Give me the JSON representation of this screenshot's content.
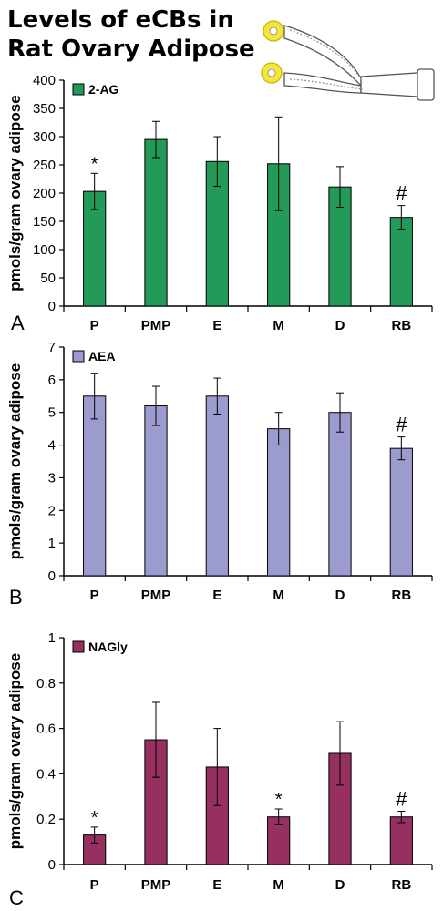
{
  "title": {
    "line1": "Levels of eCBs in",
    "line2": "Rat Ovary Adipose"
  },
  "colors": {
    "2-AG": "#249a58",
    "AEA": "#9b9bd0",
    "NAGly": "#963060",
    "axis": "#000000"
  },
  "chart_data": [
    {
      "type": "bar",
      "panel_label": "A",
      "categories": [
        "P",
        "PMP",
        "E",
        "M",
        "D",
        "RB"
      ],
      "series": [
        {
          "name": "2-AG",
          "values": [
            203,
            295,
            256,
            252,
            211,
            157
          ]
        }
      ],
      "errors_upper": [
        32,
        32,
        44,
        83,
        36,
        21
      ],
      "errors_lower": [
        32,
        32,
        44,
        83,
        36,
        21
      ],
      "annotations": [
        "*",
        "",
        "",
        "",
        "",
        "#"
      ],
      "ylabel": "pmols/gram ovary adipose",
      "ylim": [
        0,
        400
      ],
      "yticks": [
        "0",
        "50",
        "100",
        "150",
        "200",
        "250",
        "300",
        "350",
        "400"
      ],
      "legend": "top-left"
    },
    {
      "type": "bar",
      "panel_label": "B",
      "categories": [
        "P",
        "PMP",
        "E",
        "M",
        "D",
        "RB"
      ],
      "series": [
        {
          "name": "AEA",
          "values": [
            5.5,
            5.2,
            5.5,
            4.5,
            5.0,
            3.9
          ]
        }
      ],
      "errors_upper": [
        0.7,
        0.6,
        0.55,
        0.5,
        0.6,
        0.35
      ],
      "errors_lower": [
        0.7,
        0.6,
        0.55,
        0.5,
        0.6,
        0.35
      ],
      "annotations": [
        "",
        "",
        "",
        "",
        "",
        "#"
      ],
      "ylabel": "pmols/gram ovary adipose",
      "ylim": [
        0,
        7
      ],
      "yticks": [
        "0",
        "1",
        "2",
        "3",
        "4",
        "5",
        "6",
        "7"
      ],
      "legend": "top-left"
    },
    {
      "type": "bar",
      "panel_label": "C",
      "categories": [
        "P",
        "PMP",
        "E",
        "M",
        "D",
        "RB"
      ],
      "series": [
        {
          "name": "NAGly",
          "values": [
            0.13,
            0.55,
            0.43,
            0.21,
            0.49,
            0.21
          ]
        }
      ],
      "errors_upper": [
        0.035,
        0.165,
        0.17,
        0.035,
        0.14,
        0.025
      ],
      "errors_lower": [
        0.035,
        0.165,
        0.17,
        0.035,
        0.14,
        0.025
      ],
      "annotations": [
        "*",
        "",
        "",
        "*",
        "",
        "#"
      ],
      "ylabel": "pmols/gram ovary adipose",
      "ylim": [
        0,
        1
      ],
      "yticks": [
        "0",
        "0.2",
        "0.4",
        "0.6",
        "0.8",
        "1"
      ],
      "legend": "top-left"
    }
  ]
}
